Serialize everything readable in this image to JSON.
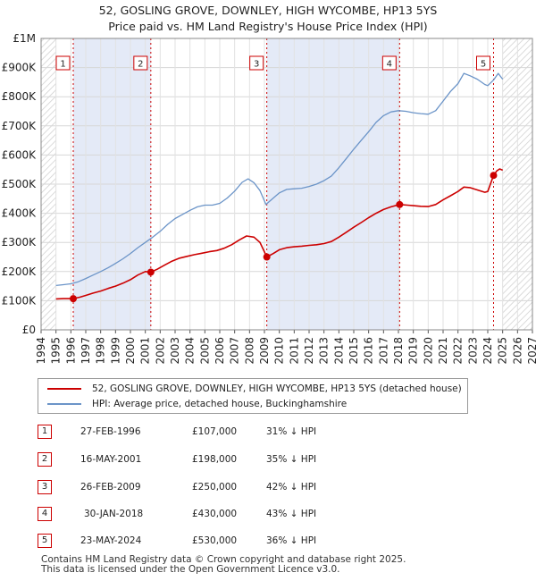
{
  "header": {
    "title_line1": "52, GOSLING GROVE, DOWNLEY, HIGH WYCOMBE, HP13 5YS",
    "title_line2": "Price paid vs. HM Land Registry's House Price Index (HPI)"
  },
  "chart_data": {
    "type": "line",
    "title": "52, GOSLING GROVE, DOWNLEY, HIGH WYCOMBE, HP13 5YS — Price paid vs. HM Land Registry's House Price Index (HPI)",
    "xlim": [
      1994,
      2027
    ],
    "ylim": [
      0,
      1000000
    ],
    "x_ticks": [
      1994,
      1995,
      1996,
      1997,
      1998,
      1999,
      2000,
      2001,
      2002,
      2003,
      2004,
      2005,
      2006,
      2007,
      2008,
      2009,
      2010,
      2011,
      2012,
      2013,
      2014,
      2015,
      2016,
      2017,
      2018,
      2019,
      2020,
      2021,
      2022,
      2023,
      2024,
      2025,
      2026,
      2027
    ],
    "y_ticks": [
      0,
      100000,
      200000,
      300000,
      400000,
      500000,
      600000,
      700000,
      800000,
      900000,
      1000000
    ],
    "y_tick_labels": [
      "£0",
      "£100K",
      "£200K",
      "£300K",
      "£400K",
      "£500K",
      "£600K",
      "£700K",
      "£800K",
      "£900K",
      "£1M"
    ],
    "data_start": 1995.0,
    "data_end": 2025.0,
    "colors": {
      "property": "#cc0000",
      "hpi": "#6b94c8",
      "shade": "#e4eaf7",
      "hatch": "#cfcfcf"
    },
    "series": [
      {
        "name": "52, GOSLING GROVE, DOWNLEY, HIGH WYCOMBE, HP13 5YS (detached house)",
        "color": "#cc0000",
        "points": [
          [
            1995.0,
            106000
          ],
          [
            1995.5,
            107000
          ],
          [
            1996.16,
            107000
          ],
          [
            1996.6,
            112000
          ],
          [
            1997.0,
            118000
          ],
          [
            1997.5,
            126000
          ],
          [
            1998.0,
            133000
          ],
          [
            1998.5,
            142000
          ],
          [
            1999.0,
            150000
          ],
          [
            1999.5,
            160000
          ],
          [
            2000.0,
            172000
          ],
          [
            2000.5,
            188000
          ],
          [
            2001.0,
            200000
          ],
          [
            2001.37,
            198000
          ],
          [
            2001.8,
            208000
          ],
          [
            2002.3,
            222000
          ],
          [
            2002.8,
            236000
          ],
          [
            2003.3,
            246000
          ],
          [
            2003.8,
            252000
          ],
          [
            2004.3,
            258000
          ],
          [
            2004.8,
            263000
          ],
          [
            2005.3,
            268000
          ],
          [
            2005.8,
            272000
          ],
          [
            2006.3,
            280000
          ],
          [
            2006.8,
            292000
          ],
          [
            2007.3,
            308000
          ],
          [
            2007.8,
            322000
          ],
          [
            2008.3,
            318000
          ],
          [
            2008.7,
            300000
          ],
          [
            2009.16,
            250000
          ],
          [
            2009.6,
            262000
          ],
          [
            2010.0,
            275000
          ],
          [
            2010.5,
            282000
          ],
          [
            2011.0,
            285000
          ],
          [
            2011.5,
            287000
          ],
          [
            2012.0,
            290000
          ],
          [
            2012.5,
            292000
          ],
          [
            2013.0,
            296000
          ],
          [
            2013.5,
            303000
          ],
          [
            2014.0,
            318000
          ],
          [
            2014.5,
            335000
          ],
          [
            2015.0,
            352000
          ],
          [
            2015.5,
            368000
          ],
          [
            2016.0,
            385000
          ],
          [
            2016.5,
            400000
          ],
          [
            2017.0,
            413000
          ],
          [
            2017.5,
            422000
          ],
          [
            2018.08,
            430000
          ],
          [
            2018.6,
            428000
          ],
          [
            2019.0,
            426000
          ],
          [
            2019.5,
            424000
          ],
          [
            2020.0,
            423000
          ],
          [
            2020.5,
            430000
          ],
          [
            2021.0,
            446000
          ],
          [
            2021.5,
            460000
          ],
          [
            2022.0,
            475000
          ],
          [
            2022.4,
            490000
          ],
          [
            2022.8,
            488000
          ],
          [
            2023.3,
            480000
          ],
          [
            2023.8,
            472000
          ],
          [
            2024.0,
            475000
          ],
          [
            2024.39,
            530000
          ],
          [
            2024.6,
            545000
          ],
          [
            2024.8,
            552000
          ],
          [
            2025.0,
            548000
          ]
        ]
      },
      {
        "name": "HPI: Average price, detached house, Buckinghamshire",
        "color": "#6b94c8",
        "points": [
          [
            1995.0,
            152000
          ],
          [
            1995.5,
            155000
          ],
          [
            1996.0,
            158000
          ],
          [
            1996.5,
            165000
          ],
          [
            1997.0,
            176000
          ],
          [
            1997.5,
            188000
          ],
          [
            1998.0,
            200000
          ],
          [
            1998.5,
            213000
          ],
          [
            1999.0,
            228000
          ],
          [
            1999.5,
            244000
          ],
          [
            2000.0,
            262000
          ],
          [
            2000.5,
            282000
          ],
          [
            2001.0,
            300000
          ],
          [
            2001.5,
            318000
          ],
          [
            2002.0,
            338000
          ],
          [
            2002.5,
            362000
          ],
          [
            2003.0,
            382000
          ],
          [
            2003.5,
            396000
          ],
          [
            2004.0,
            410000
          ],
          [
            2004.5,
            422000
          ],
          [
            2005.0,
            428000
          ],
          [
            2005.5,
            428000
          ],
          [
            2006.0,
            434000
          ],
          [
            2006.5,
            452000
          ],
          [
            2007.0,
            476000
          ],
          [
            2007.5,
            506000
          ],
          [
            2007.9,
            518000
          ],
          [
            2008.3,
            505000
          ],
          [
            2008.7,
            478000
          ],
          [
            2009.1,
            430000
          ],
          [
            2009.5,
            448000
          ],
          [
            2010.0,
            470000
          ],
          [
            2010.5,
            482000
          ],
          [
            2011.0,
            484000
          ],
          [
            2011.5,
            486000
          ],
          [
            2012.0,
            492000
          ],
          [
            2012.5,
            500000
          ],
          [
            2013.0,
            512000
          ],
          [
            2013.5,
            528000
          ],
          [
            2014.0,
            556000
          ],
          [
            2014.5,
            588000
          ],
          [
            2015.0,
            620000
          ],
          [
            2015.5,
            650000
          ],
          [
            2016.0,
            680000
          ],
          [
            2016.5,
            712000
          ],
          [
            2017.0,
            735000
          ],
          [
            2017.5,
            748000
          ],
          [
            2018.0,
            752000
          ],
          [
            2018.5,
            750000
          ],
          [
            2019.0,
            745000
          ],
          [
            2019.5,
            742000
          ],
          [
            2020.0,
            740000
          ],
          [
            2020.5,
            752000
          ],
          [
            2021.0,
            785000
          ],
          [
            2021.5,
            818000
          ],
          [
            2022.0,
            845000
          ],
          [
            2022.4,
            880000
          ],
          [
            2022.8,
            872000
          ],
          [
            2023.3,
            860000
          ],
          [
            2023.8,
            842000
          ],
          [
            2024.0,
            838000
          ],
          [
            2024.4,
            858000
          ],
          [
            2024.7,
            880000
          ],
          [
            2025.0,
            860000
          ]
        ]
      }
    ],
    "sales": [
      {
        "label": "1",
        "x": 1996.16,
        "price": 107000,
        "date": "27-FEB-1996",
        "price_text": "£107,000",
        "hpi_text": "31% ↓ HPI"
      },
      {
        "label": "2",
        "x": 2001.37,
        "price": 198000,
        "date": "16-MAY-2001",
        "price_text": "£198,000",
        "hpi_text": "35% ↓ HPI"
      },
      {
        "label": "3",
        "x": 2009.16,
        "price": 250000,
        "date": "26-FEB-2009",
        "price_text": "£250,000",
        "hpi_text": "42% ↓ HPI"
      },
      {
        "label": "4",
        "x": 2018.08,
        "price": 430000,
        "date": "30-JAN-2018",
        "price_text": "£430,000",
        "hpi_text": "43% ↓ HPI"
      },
      {
        "label": "5",
        "x": 2024.39,
        "price": 530000,
        "date": "23-MAY-2024",
        "price_text": "£530,000",
        "hpi_text": "36% ↓ HPI"
      }
    ],
    "shaded_ranges": [
      [
        1996.16,
        2001.37
      ],
      [
        2009.16,
        2018.08
      ]
    ],
    "legend": {
      "property_label": "52, GOSLING GROVE, DOWNLEY, HIGH WYCOMBE, HP13 5YS (detached house)",
      "hpi_label": "HPI: Average price, detached house, Buckinghamshire"
    }
  },
  "footer": {
    "line1": "Contains HM Land Registry data © Crown copyright and database right 2025.",
    "line2": "This data is licensed under the Open Government Licence v3.0."
  }
}
